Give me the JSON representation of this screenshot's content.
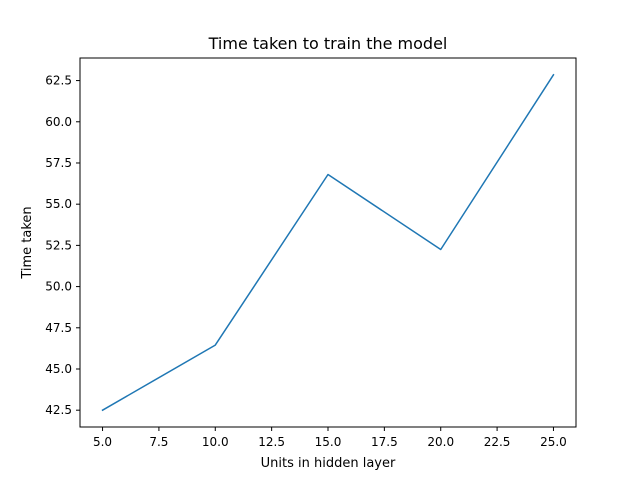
{
  "chart_data": {
    "type": "line",
    "title": "Time taken to train the model",
    "xlabel": "Units in hidden layer",
    "ylabel": "Time taken",
    "x": [
      5,
      10,
      15,
      20,
      25
    ],
    "series": [
      {
        "values": [
          42.5,
          46.45,
          56.8,
          52.25,
          62.85
        ],
        "color": "#1f77b4"
      }
    ],
    "xlim": [
      4.0,
      26.0
    ],
    "ylim": [
      41.48,
      63.87
    ],
    "xticks": [
      "5.0",
      "7.5",
      "10.0",
      "12.5",
      "15.0",
      "17.5",
      "20.0",
      "22.5",
      "25.0"
    ],
    "yticks": [
      "42.5",
      "45.0",
      "47.5",
      "50.0",
      "52.5",
      "55.0",
      "57.5",
      "60.0",
      "62.5"
    ],
    "grid": false,
    "legend": "none"
  }
}
